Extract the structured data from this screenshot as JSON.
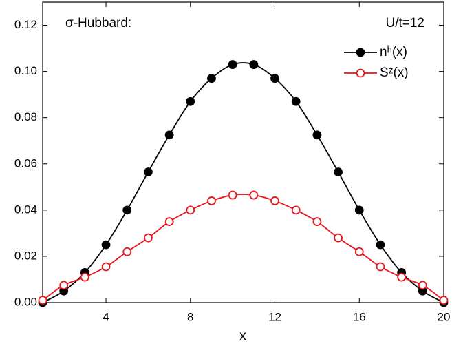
{
  "chart_data": {
    "type": "line",
    "title": "σ-Hubbard:",
    "annotation": "U/t=12",
    "xlabel": "x",
    "x": [
      1,
      2,
      3,
      4,
      5,
      6,
      7,
      8,
      9,
      10,
      11,
      12,
      13,
      14,
      15,
      16,
      17,
      18,
      19,
      20
    ],
    "series": [
      {
        "name": "nʰ(x)",
        "color": "#000000",
        "marker": "filled",
        "values": [
          0,
          0.005,
          0.013,
          0.025,
          0.04,
          0.0565,
          0.0725,
          0.087,
          0.097,
          0.103,
          0.103,
          0.097,
          0.087,
          0.0725,
          0.0565,
          0.04,
          0.025,
          0.013,
          0.005,
          0
        ]
      },
      {
        "name": "Sᶻ(x)",
        "color": "#e8141c",
        "marker": "open",
        "values": [
          0.001,
          0.0075,
          0.011,
          0.0155,
          0.022,
          0.028,
          0.035,
          0.04,
          0.044,
          0.0465,
          0.0465,
          0.044,
          0.04,
          0.035,
          0.028,
          0.022,
          0.0155,
          0.011,
          0.0075,
          0.001
        ]
      }
    ],
    "xlim": [
      1,
      20
    ],
    "xticks": [
      4,
      8,
      12,
      16,
      20
    ],
    "ylim": [
      0,
      0.13
    ],
    "yticks": [
      {
        "value": 0,
        "label": "0.00"
      },
      0.02,
      0.04,
      0.06,
      0.08,
      {
        "value": 0.1,
        "label": "0.10"
      },
      0.12
    ],
    "grid": false,
    "legend": "upper right"
  }
}
